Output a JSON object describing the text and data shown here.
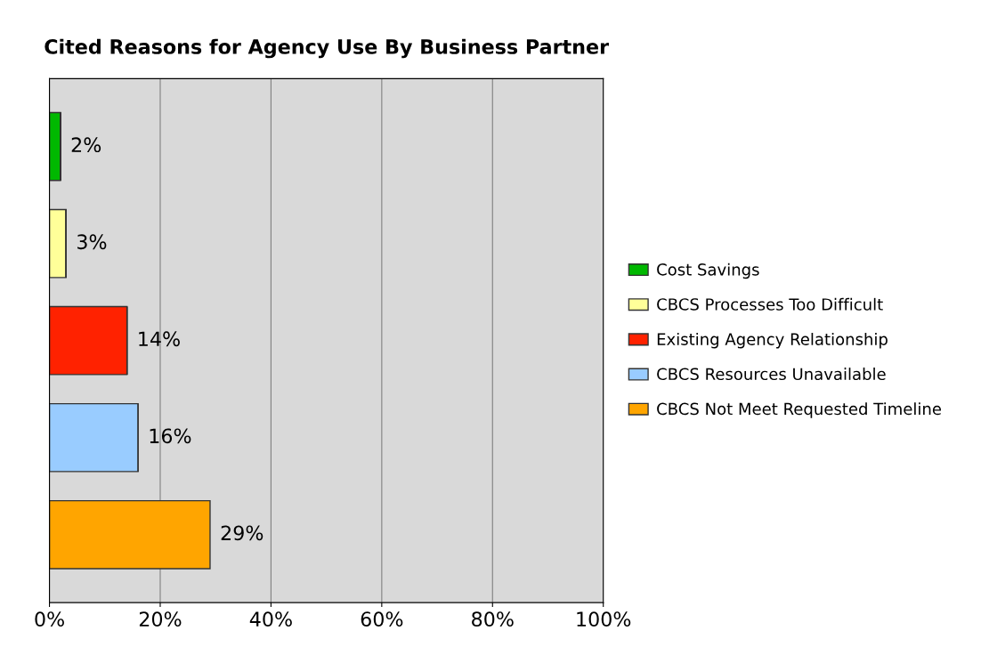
{
  "chart_data": {
    "type": "bar",
    "orientation": "horizontal",
    "title": "Cited Reasons for Agency Use By Business Partner",
    "categories": [
      null,
      null,
      null,
      null,
      null
    ],
    "series": [
      {
        "name": "Cost Savings",
        "color": "#00b800",
        "values": [
          2,
          null,
          null,
          null,
          null
        ],
        "value_labels": [
          "2%",
          null,
          null,
          null,
          null
        ]
      },
      {
        "name": "CBCS Processes Too Difficult",
        "color": "#ffff99",
        "values": [
          null,
          3,
          null,
          null,
          null
        ],
        "value_labels": [
          null,
          "3%",
          null,
          null,
          null
        ]
      },
      {
        "name": "Existing Agency Relationship",
        "color": "#ff2200",
        "values": [
          null,
          null,
          14,
          null,
          null
        ],
        "value_labels": [
          null,
          null,
          "14%",
          null,
          null
        ]
      },
      {
        "name": "CBCS Resources Unavailable",
        "color": "#99ccff",
        "values": [
          null,
          null,
          null,
          16,
          null
        ],
        "value_labels": [
          null,
          null,
          null,
          "16%",
          null
        ]
      },
      {
        "name": "CBCS Not Meet Requested Timeline",
        "color": "#ffa500",
        "values": [
          null,
          null,
          null,
          null,
          29
        ],
        "value_labels": [
          null,
          null,
          null,
          null,
          "29%"
        ]
      }
    ],
    "xlim": [
      0,
      100
    ],
    "xticks": [
      {
        "value": 0,
        "label": "0%"
      },
      {
        "value": 20,
        "label": "20%"
      },
      {
        "value": 40,
        "label": "40%"
      },
      {
        "value": 60,
        "label": "60%"
      },
      {
        "value": 80,
        "label": "80%"
      },
      {
        "value": 100,
        "label": "100%"
      }
    ],
    "grid": "x",
    "legend": "right",
    "stacked": true
  }
}
